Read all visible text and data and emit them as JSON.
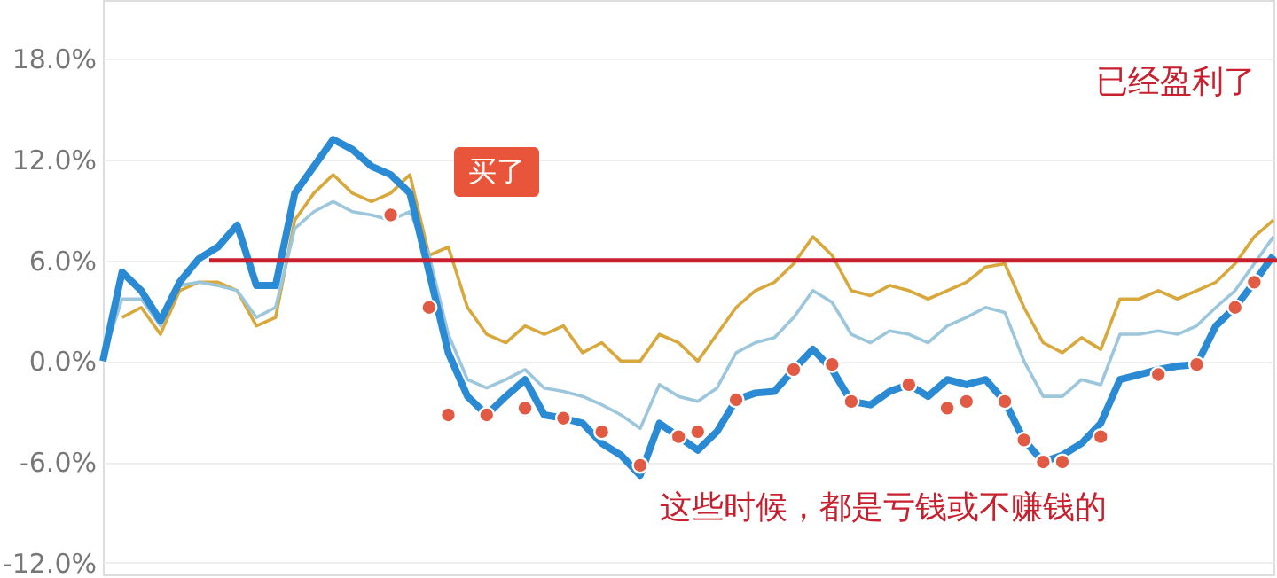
{
  "chart_data": {
    "type": "line",
    "categories": [
      null,
      null,
      null,
      null,
      null,
      null,
      null,
      null,
      null,
      null,
      null,
      null,
      null,
      null,
      null,
      null,
      null,
      null,
      null,
      null,
      null,
      null,
      null,
      null,
      null,
      null,
      null,
      null,
      null,
      null,
      null,
      null,
      null,
      null,
      null,
      null,
      null,
      null,
      null,
      null,
      null,
      null,
      null,
      null,
      null,
      null,
      null,
      null,
      null,
      null,
      null,
      null,
      null,
      null,
      null,
      null,
      null,
      null,
      null,
      null,
      null,
      null
    ],
    "series": [
      {
        "color": "#d8a83c",
        "values": [
          null,
          2.6,
          3.2,
          1.6,
          4.2,
          4.7,
          4.7,
          4.2,
          2.1,
          2.6,
          8.4,
          10.0,
          11.1,
          10.0,
          9.5,
          10.0,
          11.1,
          6.3,
          6.8,
          3.2,
          1.6,
          1.1,
          2.1,
          1.6,
          2.1,
          0.5,
          1.1,
          0.0,
          0.0,
          1.6,
          1.1,
          0.0,
          1.6,
          3.2,
          4.2,
          4.7,
          5.8,
          7.4,
          6.3,
          4.2,
          3.9,
          4.5,
          4.2,
          3.7,
          4.2,
          4.7,
          5.6,
          5.8,
          3.2,
          1.1,
          0.5,
          1.4,
          0.7,
          3.7,
          3.7,
          4.2,
          3.7,
          4.2,
          4.7,
          5.8,
          7.4,
          8.4
        ]
      },
      {
        "color": "#9cc6dc",
        "values": [
          0.2,
          3.7,
          3.7,
          2.1,
          4.5,
          4.7,
          4.5,
          4.2,
          2.6,
          3.2,
          7.9,
          8.9,
          9.5,
          8.9,
          8.7,
          8.4,
          8.9,
          6.3,
          1.6,
          -1.1,
          -1.6,
          -1.1,
          -0.5,
          -1.6,
          -1.8,
          -2.1,
          -2.6,
          -3.2,
          -4.0,
          -1.4,
          -2.1,
          -2.4,
          -1.6,
          0.5,
          1.1,
          1.4,
          2.6,
          4.2,
          3.5,
          1.6,
          1.1,
          1.8,
          1.6,
          1.1,
          2.1,
          2.6,
          3.2,
          2.9,
          0.0,
          -2.1,
          -2.1,
          -1.1,
          -1.4,
          1.6,
          1.6,
          1.8,
          1.6,
          2.1,
          3.2,
          4.2,
          5.8,
          7.4
        ]
      },
      {
        "color": "#2a8ad4",
        "values": [
          0.0,
          5.3,
          4.2,
          2.4,
          4.7,
          6.1,
          6.8,
          8.1,
          4.5,
          4.5,
          10.0,
          11.6,
          13.2,
          12.6,
          11.6,
          11.1,
          10.0,
          5.3,
          0.5,
          -2.1,
          -3.2,
          -2.1,
          -1.1,
          -3.2,
          -3.4,
          -3.7,
          -4.9,
          -5.6,
          -6.8,
          -3.7,
          -4.5,
          -5.3,
          -4.2,
          -2.3,
          -1.9,
          -1.8,
          -0.5,
          0.7,
          -0.5,
          -2.4,
          -2.6,
          -1.8,
          -1.4,
          -2.1,
          -1.1,
          -1.4,
          -1.1,
          -2.4,
          -4.7,
          -6.0,
          -5.6,
          -4.9,
          -3.7,
          -1.1,
          -0.8,
          -0.5,
          -0.3,
          -0.2,
          2.1,
          3.2,
          4.7,
          6.3
        ]
      },
      {
        "type": "scatter",
        "color": "#e05a44",
        "values": [
          null,
          null,
          null,
          null,
          null,
          null,
          null,
          null,
          null,
          null,
          null,
          null,
          null,
          null,
          null,
          8.7,
          null,
          3.2,
          -3.2,
          null,
          -3.2,
          null,
          -2.8,
          null,
          -3.4,
          null,
          -4.2,
          null,
          -6.2,
          null,
          -4.5,
          -4.2,
          null,
          -2.3,
          null,
          null,
          -0.5,
          null,
          -0.2,
          -2.4,
          null,
          null,
          -1.4,
          null,
          -2.8,
          -2.4,
          null,
          -2.4,
          -4.7,
          -6.0,
          -6.0,
          null,
          -4.5,
          null,
          null,
          -0.8,
          null,
          -0.2,
          null,
          3.2,
          4.7,
          null
        ]
      }
    ],
    "ylim": [
      -12.7,
      21.5
    ],
    "yticks": [
      {
        "value": -12,
        "label": "-12.0%"
      },
      {
        "value": -6,
        "label": "-6.0%"
      },
      {
        "value": 0,
        "label": "0.0%"
      },
      {
        "value": 6,
        "label": "6.0%"
      },
      {
        "value": 12,
        "label": "12.0%"
      },
      {
        "value": 18,
        "label": "18.0%"
      }
    ],
    "grid": "y",
    "line_style": "solid",
    "ref_lines": [
      {
        "axis": "y",
        "value": 6.0,
        "color": "#c8202e",
        "line_style": "solid"
      }
    ],
    "annotations": [
      "买了",
      "已经盈利了",
      "这些时候，都是亏钱或不赚钱的"
    ]
  }
}
